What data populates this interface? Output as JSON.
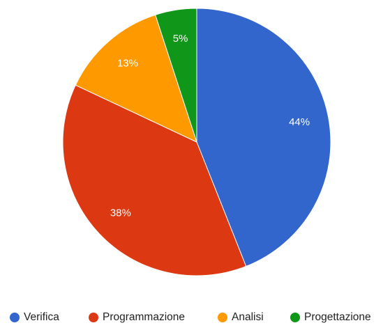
{
  "chart_data": {
    "type": "pie",
    "title": "",
    "slices": [
      {
        "label": "Verifica",
        "value": 44,
        "display": "44%",
        "color": "#3366cc"
      },
      {
        "label": "Programmazione",
        "value": 38,
        "display": "38%",
        "color": "#dc3912"
      },
      {
        "label": "Analisi",
        "value": 13,
        "display": "13%",
        "color": "#ff9900"
      },
      {
        "label": "Progettazione",
        "value": 5,
        "display": "5%",
        "color": "#109618"
      }
    ],
    "start_angle_deg": 0,
    "direction": "clockwise",
    "legend_position": "bottom"
  }
}
